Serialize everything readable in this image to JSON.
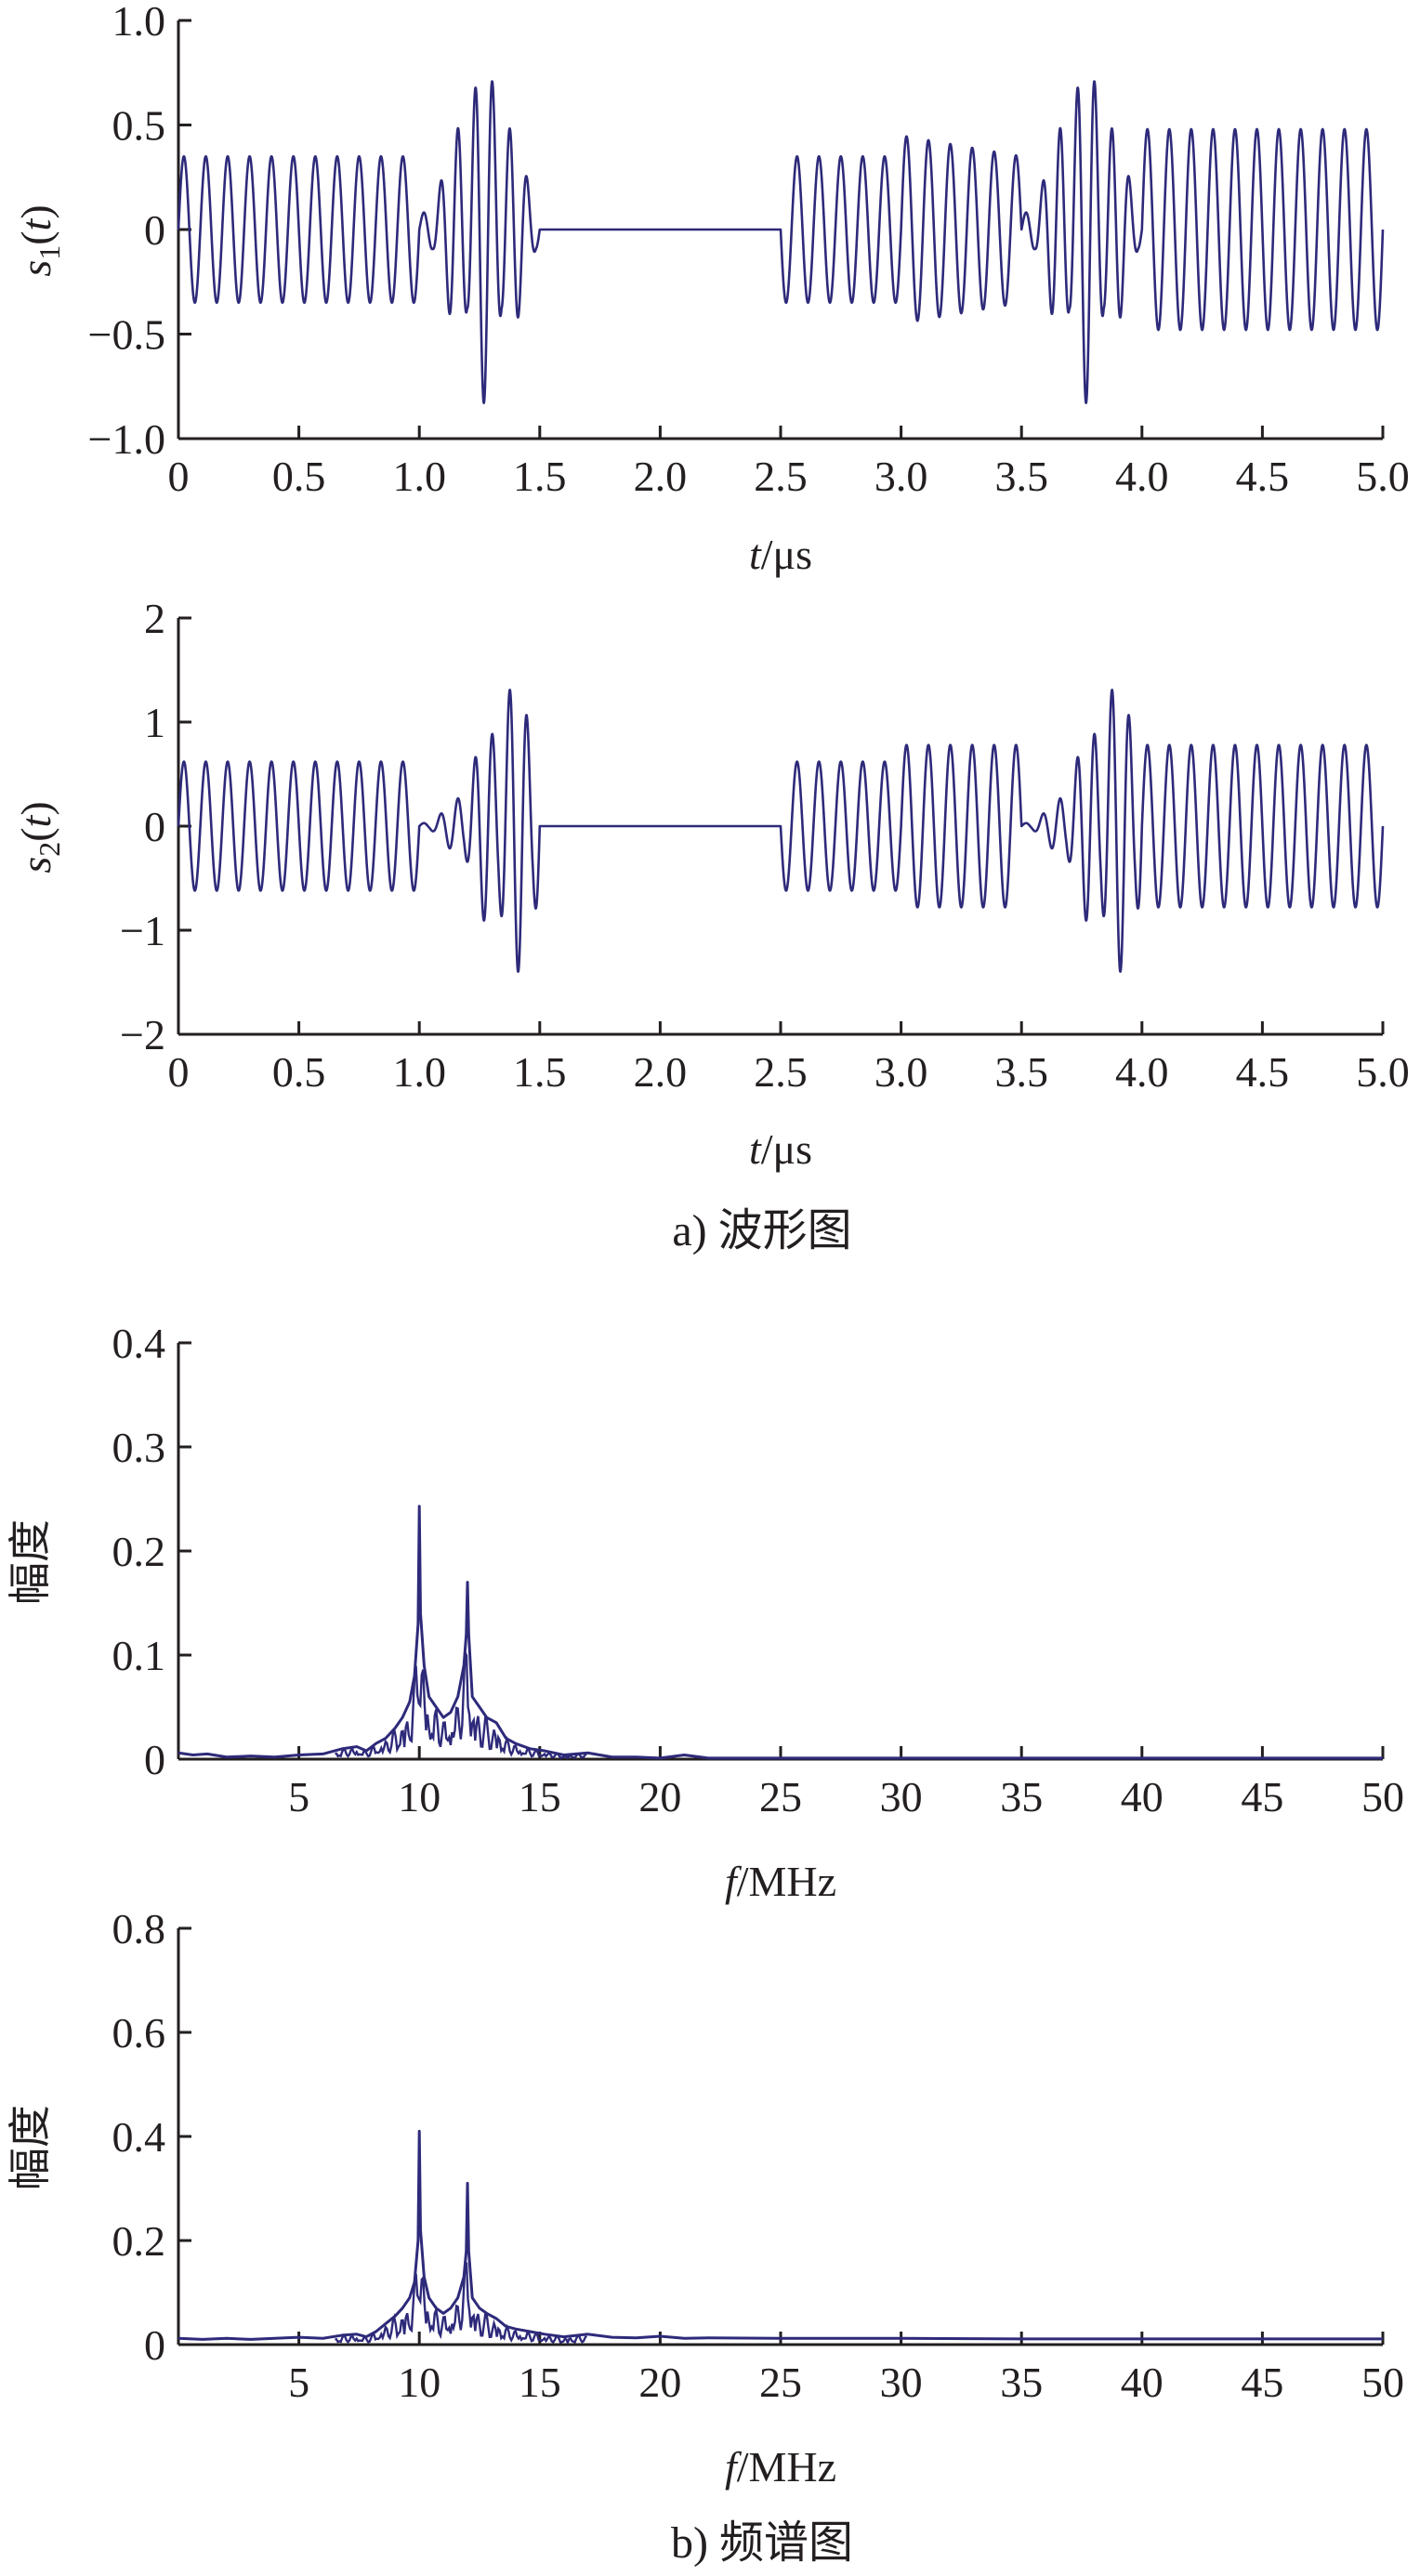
{
  "colors": {
    "line": "#2e2a7a",
    "axis": "#231f20",
    "background": "#ffffff"
  },
  "captions": {
    "a": "a) 波形图",
    "b": "b) 频谱图"
  },
  "chart_data": [
    {
      "type": "line",
      "ylabel": "s1(t)",
      "ylabel_parts": {
        "base": "s",
        "sub": "1",
        "arg": "(t)"
      },
      "xlabel": "t/μs",
      "xlabel_parts": {
        "var": "t",
        "unit": "/μs"
      },
      "xlim": [
        0,
        5.0
      ],
      "ylim": [
        -1.0,
        1.0
      ],
      "xticks": [
        0,
        0.5,
        1.0,
        1.5,
        2.0,
        2.5,
        3.0,
        3.5,
        4.0,
        4.5,
        5.0
      ],
      "xtick_labels": [
        "0",
        "0.5",
        "1.0",
        "1.5",
        "2.0",
        "2.5",
        "3.0",
        "3.5",
        "4.0",
        "4.5",
        "5.0"
      ],
      "yticks": [
        -1.0,
        -0.5,
        0,
        0.5,
        1.0
      ],
      "ytick_labels": [
        "−1.0",
        "−0.5",
        "0",
        "0.5",
        "1.0"
      ],
      "grid": false,
      "series": [
        {
          "segments": [
            {
              "x_start": 0.0,
              "x_end": 1.0,
              "shape": "constant",
              "carrier_mhz": 11,
              "amp": 0.35
            },
            {
              "x_start": 1.0,
              "x_end": 1.5,
              "shape": "burst",
              "carrier_mhz": 14,
              "amp": 0.83,
              "peak_t": 1.27,
              "width_us": 0.17,
              "low_mhz": 10,
              "high_mhz": 17
            },
            {
              "x_start": 1.5,
              "x_end": 2.5,
              "shape": "flat",
              "amp": 0
            },
            {
              "x_start": 2.5,
              "x_end": 3.0,
              "shape": "constant",
              "carrier_mhz": 11,
              "amp": 0.35
            },
            {
              "x_start": 3.0,
              "x_end": 3.5,
              "shape": "ramp",
              "carrier_mhz": 11,
              "amp_from": 0.45,
              "amp_to": 0.35
            },
            {
              "x_start": 3.5,
              "x_end": 4.0,
              "shape": "burst",
              "carrier_mhz": 14,
              "amp": 0.83,
              "peak_t": 3.77,
              "width_us": 0.17,
              "low_mhz": 10,
              "high_mhz": 17
            },
            {
              "x_start": 4.0,
              "x_end": 5.0,
              "shape": "constant",
              "carrier_mhz": 11,
              "amp": 0.48
            }
          ]
        }
      ]
    },
    {
      "type": "line",
      "ylabel": "s2(t)",
      "ylabel_parts": {
        "base": "s",
        "sub": "2",
        "arg": "(t)"
      },
      "xlabel": "t/μs",
      "xlabel_parts": {
        "var": "t",
        "unit": "/μs"
      },
      "xlim": [
        0,
        5.0
      ],
      "ylim": [
        -2,
        2
      ],
      "xticks": [
        0,
        0.5,
        1.0,
        1.5,
        2.0,
        2.5,
        3.0,
        3.5,
        4.0,
        4.5,
        5.0
      ],
      "xtick_labels": [
        "0",
        "0.5",
        "1.0",
        "1.5",
        "2.0",
        "2.5",
        "3.0",
        "3.5",
        "4.0",
        "4.5",
        "5.0"
      ],
      "yticks": [
        -2,
        -1,
        0,
        1,
        2
      ],
      "ytick_labels": [
        "−2",
        "−1",
        "0",
        "1",
        "2"
      ],
      "grid": false,
      "series": [
        {
          "segments": [
            {
              "x_start": 0.0,
              "x_end": 1.0,
              "shape": "constant",
              "carrier_mhz": 11,
              "amp": 0.62
            },
            {
              "x_start": 1.0,
              "x_end": 1.5,
              "shape": "burst",
              "carrier_mhz": 14,
              "amp": 1.42,
              "peak_t": 1.4,
              "width_us": 0.2,
              "low_mhz": 10,
              "high_mhz": 17
            },
            {
              "x_start": 1.5,
              "x_end": 2.5,
              "shape": "flat",
              "amp": 0
            },
            {
              "x_start": 2.5,
              "x_end": 3.0,
              "shape": "constant",
              "carrier_mhz": 11,
              "amp": 0.62
            },
            {
              "x_start": 3.0,
              "x_end": 3.5,
              "shape": "constant",
              "carrier_mhz": 11,
              "amp": 0.78
            },
            {
              "x_start": 3.5,
              "x_end": 4.0,
              "shape": "burst",
              "carrier_mhz": 14,
              "amp": 1.42,
              "peak_t": 3.9,
              "width_us": 0.2,
              "low_mhz": 10,
              "high_mhz": 17
            },
            {
              "x_start": 4.0,
              "x_end": 5.0,
              "shape": "constant",
              "carrier_mhz": 11,
              "amp": 0.78
            }
          ]
        }
      ]
    },
    {
      "type": "line",
      "ylabel": "幅度",
      "xlabel": "f/MHz",
      "xlabel_parts": {
        "var": "f",
        "unit": "/MHz"
      },
      "xlim": [
        0,
        50
      ],
      "ylim": [
        0,
        0.4
      ],
      "xticks": [
        5,
        10,
        15,
        20,
        25,
        30,
        35,
        40,
        45,
        50
      ],
      "xtick_labels": [
        "5",
        "10",
        "15",
        "20",
        "25",
        "30",
        "35",
        "40",
        "45",
        "50"
      ],
      "yticks": [
        0,
        0.1,
        0.2,
        0.3,
        0.4
      ],
      "ytick_labels": [
        "0",
        "0.1",
        "0.2",
        "0.3",
        "0.4"
      ],
      "grid": false,
      "series": [
        {
          "points": [
            [
              0,
              0.006
            ],
            [
              0.6,
              0.004
            ],
            [
              1.2,
              0.005
            ],
            [
              2,
              0.002
            ],
            [
              3,
              0.003
            ],
            [
              4,
              0.002
            ],
            [
              5,
              0.004
            ],
            [
              6,
              0.005
            ],
            [
              6.8,
              0.01
            ],
            [
              7.4,
              0.012
            ],
            [
              7.8,
              0.008
            ],
            [
              8.2,
              0.015
            ],
            [
              8.6,
              0.02
            ],
            [
              9.0,
              0.03
            ],
            [
              9.3,
              0.04
            ],
            [
              9.6,
              0.055
            ],
            [
              9.8,
              0.08
            ],
            [
              9.95,
              0.13
            ],
            [
              10.0,
              0.243
            ],
            [
              10.05,
              0.14
            ],
            [
              10.2,
              0.09
            ],
            [
              10.4,
              0.06
            ],
            [
              10.7,
              0.05
            ],
            [
              11.0,
              0.04
            ],
            [
              11.3,
              0.045
            ],
            [
              11.6,
              0.06
            ],
            [
              11.85,
              0.09
            ],
            [
              11.95,
              0.12
            ],
            [
              12.0,
              0.17
            ],
            [
              12.05,
              0.12
            ],
            [
              12.2,
              0.06
            ],
            [
              12.5,
              0.05
            ],
            [
              12.8,
              0.04
            ],
            [
              13.2,
              0.035
            ],
            [
              13.6,
              0.02
            ],
            [
              14,
              0.015
            ],
            [
              14.6,
              0.01
            ],
            [
              15.2,
              0.008
            ],
            [
              16,
              0.004
            ],
            [
              17,
              0.006
            ],
            [
              18,
              0.002
            ],
            [
              19,
              0.002
            ],
            [
              20,
              0.001
            ],
            [
              21,
              0.004
            ],
            [
              22,
              0.001
            ],
            [
              25,
              0.001
            ],
            [
              30,
              0.001
            ],
            [
              35,
              0.001
            ],
            [
              40,
              0.001
            ],
            [
              45,
              0.001
            ],
            [
              50,
              0.001
            ]
          ]
        }
      ]
    },
    {
      "type": "line",
      "ylabel": "幅度",
      "xlabel": "f/MHz",
      "xlabel_parts": {
        "var": "f",
        "unit": "/MHz"
      },
      "xlim": [
        0,
        50
      ],
      "ylim": [
        0,
        0.8
      ],
      "xticks": [
        5,
        10,
        15,
        20,
        25,
        30,
        35,
        40,
        45,
        50
      ],
      "xtick_labels": [
        "5",
        "10",
        "15",
        "20",
        "25",
        "30",
        "35",
        "40",
        "45",
        "50"
      ],
      "yticks": [
        0,
        0.2,
        0.4,
        0.6,
        0.8
      ],
      "ytick_labels": [
        "0",
        "0.2",
        "0.4",
        "0.6",
        "0.8"
      ],
      "grid": false,
      "series": [
        {
          "points": [
            [
              0,
              0.012
            ],
            [
              1,
              0.01
            ],
            [
              2,
              0.012
            ],
            [
              3,
              0.01
            ],
            [
              4,
              0.012
            ],
            [
              5,
              0.014
            ],
            [
              6,
              0.012
            ],
            [
              6.8,
              0.018
            ],
            [
              7.4,
              0.02
            ],
            [
              7.8,
              0.015
            ],
            [
              8.2,
              0.025
            ],
            [
              8.6,
              0.04
            ],
            [
              9.0,
              0.055
            ],
            [
              9.3,
              0.07
            ],
            [
              9.6,
              0.09
            ],
            [
              9.8,
              0.12
            ],
            [
              9.95,
              0.2
            ],
            [
              10.0,
              0.41
            ],
            [
              10.05,
              0.22
            ],
            [
              10.2,
              0.13
            ],
            [
              10.4,
              0.09
            ],
            [
              10.7,
              0.07
            ],
            [
              11.0,
              0.06
            ],
            [
              11.3,
              0.07
            ],
            [
              11.6,
              0.09
            ],
            [
              11.85,
              0.13
            ],
            [
              11.95,
              0.18
            ],
            [
              12.0,
              0.31
            ],
            [
              12.05,
              0.18
            ],
            [
              12.2,
              0.09
            ],
            [
              12.5,
              0.07
            ],
            [
              12.8,
              0.06
            ],
            [
              13.2,
              0.05
            ],
            [
              13.6,
              0.035
            ],
            [
              14,
              0.03
            ],
            [
              14.6,
              0.025
            ],
            [
              15.2,
              0.02
            ],
            [
              16,
              0.015
            ],
            [
              17,
              0.02
            ],
            [
              18,
              0.014
            ],
            [
              19,
              0.013
            ],
            [
              20,
              0.016
            ],
            [
              21,
              0.012
            ],
            [
              22,
              0.013
            ],
            [
              25,
              0.012
            ],
            [
              30,
              0.012
            ],
            [
              35,
              0.011
            ],
            [
              40,
              0.011
            ],
            [
              45,
              0.011
            ],
            [
              50,
              0.011
            ]
          ]
        }
      ]
    }
  ]
}
